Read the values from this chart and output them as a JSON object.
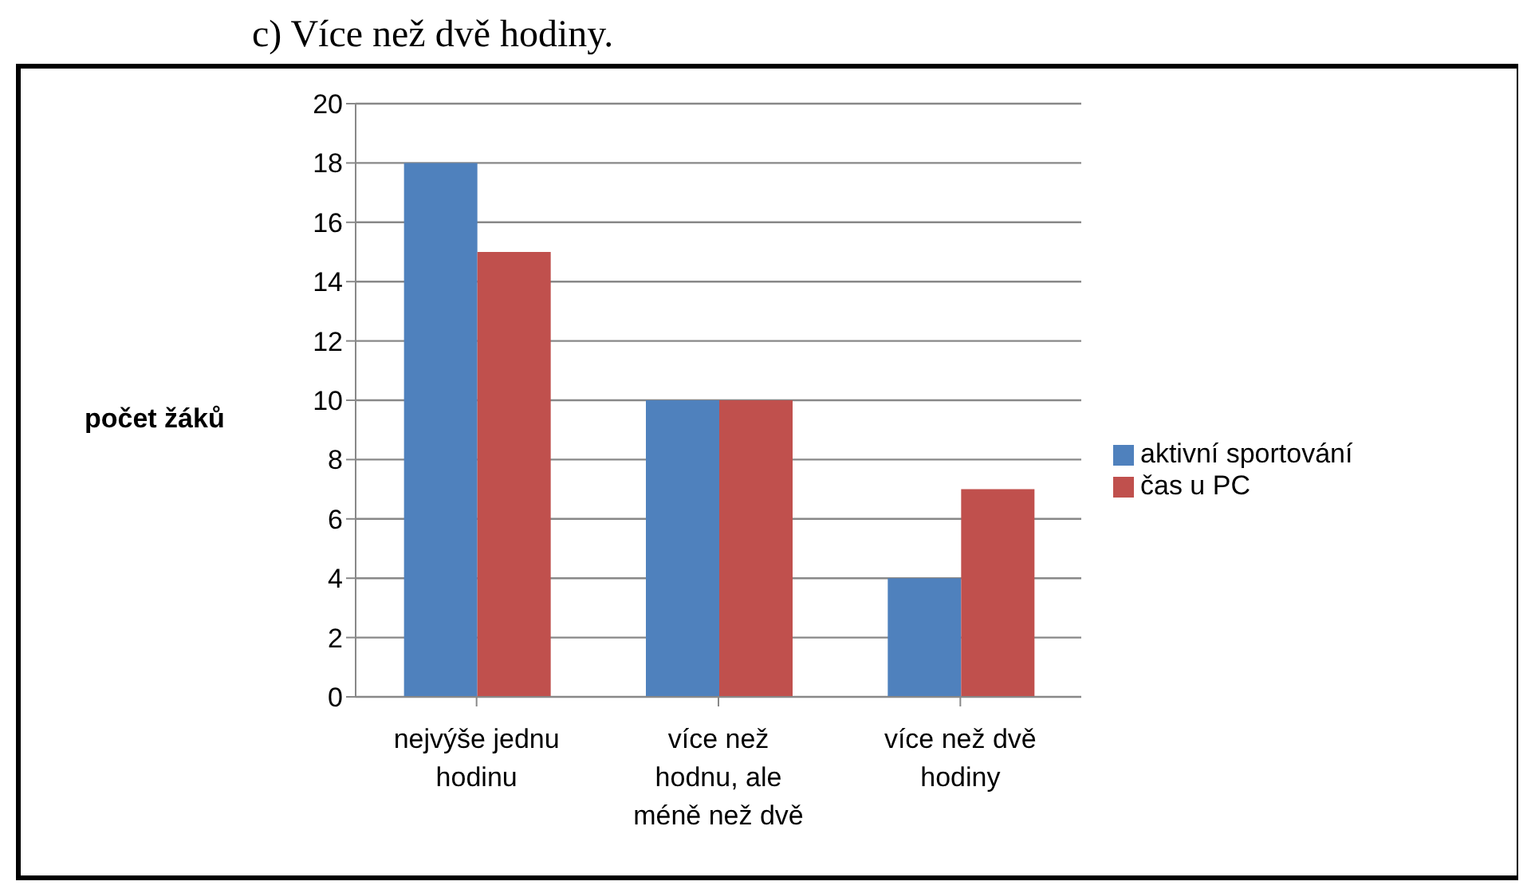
{
  "chart_data": {
    "type": "bar",
    "title": "c) Více než dvě hodiny.",
    "ylabel": "počet žáků",
    "categories": [
      "nejvýše jednu hodinu",
      "více než hodnu, ale méně než dvě",
      "více než dvě hodiny"
    ],
    "series": [
      {
        "name": "aktivní sportování",
        "color": "#4f81bd",
        "values": [
          18,
          10,
          4
        ]
      },
      {
        "name": "čas u PC",
        "color": "#c0504d",
        "values": [
          15,
          10,
          7
        ]
      }
    ],
    "ylim": [
      0,
      20
    ],
    "yticks": [
      0,
      2,
      4,
      6,
      8,
      10,
      12,
      14,
      16,
      18,
      20
    ],
    "grid": "y",
    "legend": "right"
  }
}
